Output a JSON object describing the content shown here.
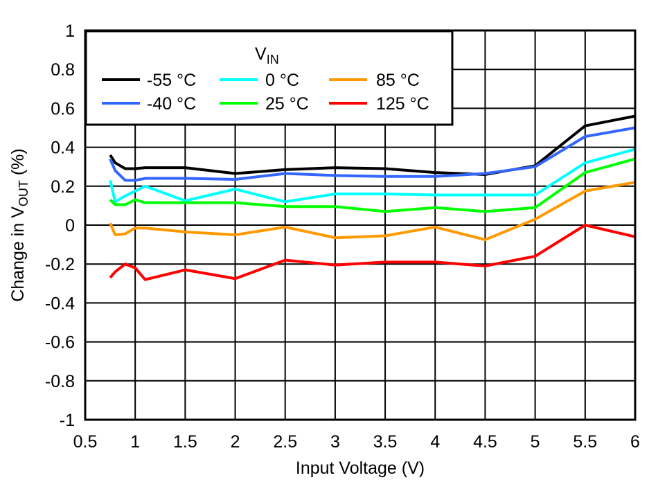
{
  "chart_data": {
    "type": "line",
    "title": "",
    "xlabel": "Input Voltage (V)",
    "ylabel_main": "Change in V",
    "ylabel_sub": "OUT",
    "ylabel_unit": " (%)",
    "xlim": [
      0.5,
      6
    ],
    "ylim": [
      -1,
      1
    ],
    "xticks": [
      "0.5",
      "1",
      "1.5",
      "2",
      "2.5",
      "3",
      "3.5",
      "4",
      "4.5",
      "5",
      "5.5",
      "6"
    ],
    "yticks": [
      "-1",
      "-0.8",
      "-0.6",
      "-0.4",
      "-0.2",
      "0",
      "0.2",
      "0.4",
      "0.6",
      "0.8",
      "1"
    ],
    "grid": true,
    "legend_title_main": "V",
    "legend_title_sub": "IN",
    "legend_placement": "top-left",
    "x": [
      0.75,
      0.8,
      0.9,
      1,
      1.1,
      1.5,
      2,
      2.5,
      3,
      3.5,
      4,
      4.5,
      5,
      5.5,
      6
    ],
    "series": [
      {
        "name": "-55 °C",
        "color": "#000000",
        "values": [
          0.36,
          0.32,
          0.29,
          0.29,
          0.295,
          0.295,
          0.265,
          0.285,
          0.295,
          0.29,
          0.27,
          0.26,
          0.305,
          0.51,
          0.56
        ]
      },
      {
        "name": "-40 °C",
        "color": "#3366ff",
        "values": [
          0.34,
          0.28,
          0.23,
          0.23,
          0.24,
          0.24,
          0.235,
          0.265,
          0.255,
          0.25,
          0.25,
          0.265,
          0.3,
          0.455,
          0.5
        ]
      },
      {
        "name": "0 °C",
        "color": "#00ffff",
        "values": [
          0.23,
          0.12,
          0.15,
          0.175,
          0.2,
          0.125,
          0.185,
          0.12,
          0.16,
          0.16,
          0.155,
          0.155,
          0.155,
          0.32,
          0.39
        ]
      },
      {
        "name": "25 °C",
        "color": "#00ff00",
        "values": [
          0.13,
          0.105,
          0.105,
          0.13,
          0.115,
          0.115,
          0.115,
          0.095,
          0.095,
          0.07,
          0.09,
          0.07,
          0.09,
          0.27,
          0.34
        ]
      },
      {
        "name": "85 °C",
        "color": "#ff9900",
        "values": [
          0.01,
          -0.05,
          -0.045,
          -0.015,
          -0.015,
          -0.035,
          -0.05,
          -0.01,
          -0.065,
          -0.055,
          -0.01,
          -0.075,
          0.03,
          0.175,
          0.22
        ]
      },
      {
        "name": "125 °C",
        "color": "#ff0000",
        "values": [
          -0.27,
          -0.24,
          -0.2,
          -0.22,
          -0.28,
          -0.23,
          -0.275,
          -0.18,
          -0.205,
          -0.19,
          -0.19,
          -0.21,
          -0.16,
          0.0,
          -0.06
        ]
      }
    ]
  }
}
